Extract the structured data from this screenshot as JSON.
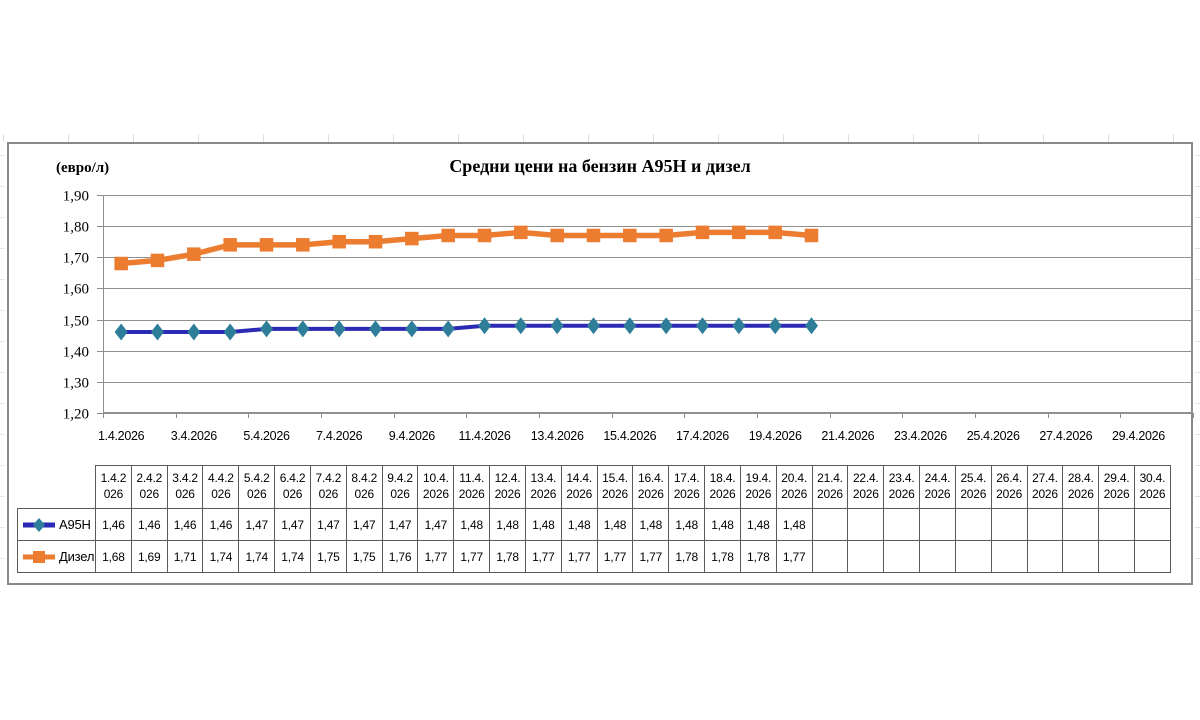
{
  "colors": {
    "a95n_line": "#2a2ab5",
    "a95n_marker": "#2e7e9a",
    "diesel": "#ec7c30",
    "grid": "#8f8f8f",
    "axis_text": "#000000",
    "table_border": "#5a5a5a",
    "chart_border": "#898989"
  },
  "chart_data": {
    "type": "line",
    "title": "Средни цени на бензин А95Н и дизел",
    "y_axis_title": "(евро/л)",
    "ylim": [
      1.2,
      1.9
    ],
    "y_tick_labels": [
      "1,90",
      "1,80",
      "1,70",
      "1,60",
      "1,50",
      "1,40",
      "1,30",
      "1,20"
    ],
    "x_tick_labels": [
      "1.4.2026",
      "3.4.2026",
      "5.4.2026",
      "7.4.2026",
      "9.4.2026",
      "11.4.2026",
      "13.4.2026",
      "15.4.2026",
      "17.4.2026",
      "19.4.2026",
      "21.4.2026",
      "23.4.2026",
      "25.4.2026",
      "27.4.2026",
      "29.4.2026"
    ],
    "categories": [
      "1.4.2026",
      "2.4.2026",
      "3.4.2026",
      "4.4.2026",
      "5.4.2026",
      "6.4.2026",
      "7.4.2026",
      "8.4.2026",
      "9.4.2026",
      "10.4.2026",
      "11.4.2026",
      "12.4.2026",
      "13.4.2026",
      "14.4.2026",
      "15.4.2026",
      "16.4.2026",
      "17.4.2026",
      "18.4.2026",
      "19.4.2026",
      "20.4.2026",
      "21.4.2026",
      "22.4.2026",
      "23.4.2026",
      "24.4.2026",
      "25.4.2026",
      "26.4.2026",
      "27.4.2026",
      "28.4.2026",
      "29.4.2026",
      "30.4.2026"
    ],
    "grid": true,
    "legend_position": "table-rows",
    "series": [
      {
        "name": "А95Н",
        "marker": "diamond",
        "values": [
          1.46,
          1.46,
          1.46,
          1.46,
          1.47,
          1.47,
          1.47,
          1.47,
          1.47,
          1.47,
          1.48,
          1.48,
          1.48,
          1.48,
          1.48,
          1.48,
          1.48,
          1.48,
          1.48,
          1.48
        ]
      },
      {
        "name": "Дизел",
        "marker": "square",
        "values": [
          1.68,
          1.69,
          1.71,
          1.74,
          1.74,
          1.74,
          1.75,
          1.75,
          1.76,
          1.77,
          1.77,
          1.78,
          1.77,
          1.77,
          1.77,
          1.77,
          1.78,
          1.78,
          1.78,
          1.77
        ]
      }
    ]
  },
  "table": {
    "rows": [
      {
        "label": "А95Н",
        "cells": [
          "1,46",
          "1,46",
          "1,46",
          "1,46",
          "1,47",
          "1,47",
          "1,47",
          "1,47",
          "1,47",
          "1,47",
          "1,48",
          "1,48",
          "1,48",
          "1,48",
          "1,48",
          "1,48",
          "1,48",
          "1,48",
          "1,48",
          "1,48",
          "",
          "",
          "",
          "",
          "",
          "",
          "",
          "",
          "",
          ""
        ]
      },
      {
        "label": "Дизел",
        "cells": [
          "1,68",
          "1,69",
          "1,71",
          "1,74",
          "1,74",
          "1,74",
          "1,75",
          "1,75",
          "1,76",
          "1,77",
          "1,77",
          "1,78",
          "1,77",
          "1,77",
          "1,77",
          "1,77",
          "1,78",
          "1,78",
          "1,78",
          "1,77",
          "",
          "",
          "",
          "",
          "",
          "",
          "",
          "",
          "",
          ""
        ]
      }
    ]
  }
}
